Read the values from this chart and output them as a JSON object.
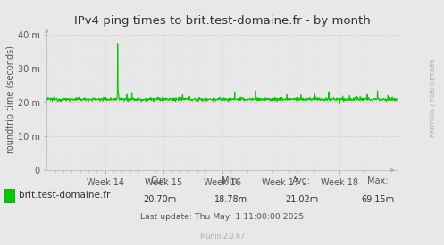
{
  "title": "IPv4 ping times to brit.test-domaine.fr - by month",
  "ylabel": "roundtrip time (seconds)",
  "bg_color": "#e8e8e8",
  "plot_bg_color": "#e8e8e8",
  "line_color": "#00cc00",
  "yticks": [
    0,
    10,
    20,
    30,
    40
  ],
  "ytick_labels": [
    "0",
    "10 m",
    "20 m",
    "30 m",
    "40 m"
  ],
  "ylim": [
    0,
    42
  ],
  "n_weeks": 5,
  "hours_per_week": 168,
  "legend_label": "brit.test-domaine.fr",
  "cur": "20.70m",
  "min": "18.78m",
  "avg": "21.02m",
  "max": "69.15m",
  "last_update": "Last update: Thu May  1 11:00:00 2025",
  "munin_version": "Munin 2.0.67",
  "side_label": "RRDTOOL / TOBI OETIKER",
  "title_fontsize": 9.5,
  "axis_fontsize": 7,
  "legend_fontsize": 7.5,
  "tick_fontsize": 7,
  "week_labels": [
    "Week 14",
    "Week 15",
    "Week 16",
    "Week 17",
    "Week 18"
  ],
  "spike_index": 204,
  "spike_value": 37.5,
  "base_value": 21.0,
  "base_noise": 0.25
}
